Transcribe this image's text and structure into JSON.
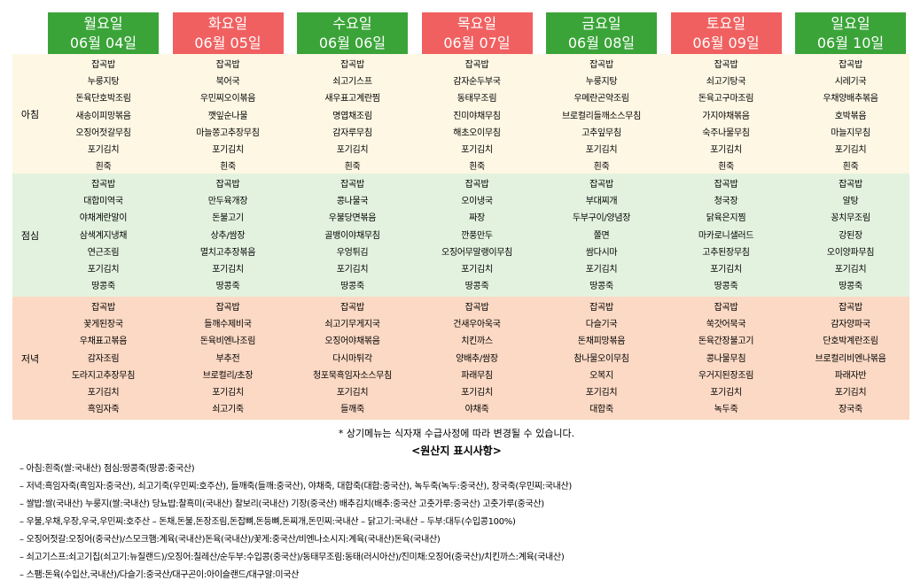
{
  "days": [
    {
      "name": "월요일",
      "date": "06월 04일",
      "color": "green"
    },
    {
      "name": "화요일",
      "date": "06월 05일",
      "color": "red"
    },
    {
      "name": "수요일",
      "date": "06월 06일",
      "color": "green"
    },
    {
      "name": "목요일",
      "date": "06월 07일",
      "color": "red"
    },
    {
      "name": "금요일",
      "date": "06월 08일",
      "color": "green"
    },
    {
      "name": "토요일",
      "date": "06월 09일",
      "color": "red"
    },
    {
      "name": "일요일",
      "date": "06월 10일",
      "color": "green"
    }
  ],
  "meals": [
    {
      "label": "아침",
      "menus": [
        [
          "잡곡밥",
          "누룽지탕",
          "돈육단호박조림",
          "새송이피망볶음",
          "오징어젓갈무침",
          "포기김치",
          "흰죽"
        ],
        [
          "잡곡밥",
          "북어국",
          "우민찌오이볶음",
          "깻잎순나물",
          "마늘쫑고추장무침",
          "포기김치",
          "흰죽"
        ],
        [
          "잡곡밥",
          "쇠고기스프",
          "새우표고계란찜",
          "명엽채조림",
          "감자루무침",
          "포기김치",
          "흰죽"
        ],
        [
          "잡곡밥",
          "감자순두부국",
          "동태무조림",
          "진미야채무침",
          "해초오이무침",
          "포기김치",
          "흰죽"
        ],
        [
          "잡곡밥",
          "누룽지탕",
          "우메란곤약조림",
          "브로컬리들깨소스무침",
          "고추잎무침",
          "포기김치",
          "흰죽"
        ],
        [
          "잡곡밥",
          "쇠고기탕국",
          "돈육고구마조림",
          "가지야채볶음",
          "숙주나물무침",
          "포기김치",
          "흰죽"
        ],
        [
          "잡곡밥",
          "시레기국",
          "우채양배추볶음",
          "호박볶음",
          "마늘지무침",
          "포기김치",
          "흰죽"
        ]
      ]
    },
    {
      "label": "점심",
      "menus": [
        [
          "잡곡밥",
          "대합미역국",
          "야채계란말이",
          "삼색계지냉채",
          "연근조림",
          "포기김치",
          "땅콩죽"
        ],
        [
          "잡곡밥",
          "만두육개장",
          "돈불고기",
          "상추/쌈장",
          "멸치고추장볶음",
          "포기김치",
          "땅콩죽"
        ],
        [
          "잡곡밥",
          "콩나물국",
          "우불당면볶음",
          "골뱅이야채무침",
          "우엉튀김",
          "포기김치",
          "땅콩죽"
        ],
        [
          "잡곡밥",
          "오이냉국",
          "짜장",
          "깐풍만두",
          "오징어무말랭이무침",
          "포기김치",
          "땅콩죽"
        ],
        [
          "잡곡밥",
          "부대찌개",
          "두부구이/양념장",
          "쫄면",
          "쌈다시마",
          "포기김치",
          "땅콩죽"
        ],
        [
          "잡곡밥",
          "청국장",
          "닭육은지찜",
          "마카로니샐러드",
          "고추된장무침",
          "포기김치",
          "땅콩죽"
        ],
        [
          "잡곡밥",
          "알탕",
          "꽁치무조림",
          "강된장",
          "오이양파무침",
          "포기김치",
          "땅콩죽"
        ]
      ]
    },
    {
      "label": "저녁",
      "menus": [
        [
          "잡곡밥",
          "꽃게된장국",
          "우채표고볶음",
          "감자조림",
          "도라지고추장무침",
          "포기김치",
          "흑임자죽"
        ],
        [
          "잡곡밥",
          "들깨수제비국",
          "돈육비엔나조림",
          "부추전",
          "브로컬리/초장",
          "포기김치",
          "쇠고기죽"
        ],
        [
          "잡곡밥",
          "쇠고기무게지국",
          "오징어야채볶음",
          "다시마튀각",
          "청포묵흑임자소스무침",
          "포기김치",
          "들깨죽"
        ],
        [
          "잡곡밥",
          "건새우아욱국",
          "치킨까스",
          "양배추/쌈장",
          "파래무침",
          "포기김치",
          "야채죽"
        ],
        [
          "잡곡밥",
          "다슬기국",
          "돈채피망볶음",
          "참나물오이무침",
          "오복지",
          "포기김치",
          "대합죽"
        ],
        [
          "잡곡밥",
          "쑥갓어묵국",
          "돈육간장불고기",
          "콩나물무침",
          "우거지된장조림",
          "포기김치",
          "녹두죽"
        ],
        [
          "잡곡밥",
          "감자양파국",
          "단호박계란조림",
          "브로컬리비엔나볶음",
          "파래자반",
          "포기김치",
          "장국죽"
        ]
      ]
    }
  ],
  "notice": "* 상기메뉴는 식자재 수급사정에 따라 변경될 수 있습니다.",
  "origin_title": "<원산지 표시사항>",
  "origin_lines": [
    "– 아침:흰죽(쌀:국내산)  점심:땅콩죽(땅콩:중국산)",
    "– 저녁:흑임자죽(흑임자:중국산), 쇠고기죽(우민찌:호주산), 들깨죽(들깨:중국산), 야채죽, 대합죽(대합:중국산), 녹두죽(녹두:중국산), 장국죽(우민찌:국내산)",
    "– 쌀밥:쌀(국내산) 누룽지(쌀:국내산) 당뇨밥:찰흑미(국내산) 찰보리(국내산) 기장(중국산) 배추김치(배추:중국산 고춧가루:중국산) 고춧가루(중국산)",
    "– 우불,우채,우장,우국,우민찌:호주산  – 돈채,돈불,돈장조림,돈잡뼈,돈등뼈,돈찌개,돈민찌:국내산  – 닭고기:국내산  – 두부:대두(수입콩100%)",
    "– 오징어젓갈:오징어(중국산)/스모크햄:계육(국내산)돈육(국내산)/꽃게:중국산/비엔나소시지:계육(국내산)돈육(국내산)",
    "– 쇠고기스프:쇠고기칩(쇠고기:뉴질랜드)/오징어:칠레산/순두부:수입콩(중국산)/동태무조림:동태(러시아산)/진미채:오징어(중국산)/치킨까스:계육(국내산)",
    "– 스팸:돈육(수입산,국내산)/다슬기:중국산/대구곤이:아이슬랜드/대구알:미국산"
  ],
  "colors": {
    "green_header": "#3aa438",
    "red_header": "#f06060",
    "breakfast_bg": "#fdf7e4",
    "lunch_bg": "#e3f2df",
    "dinner_bg": "#fbd9c4"
  }
}
